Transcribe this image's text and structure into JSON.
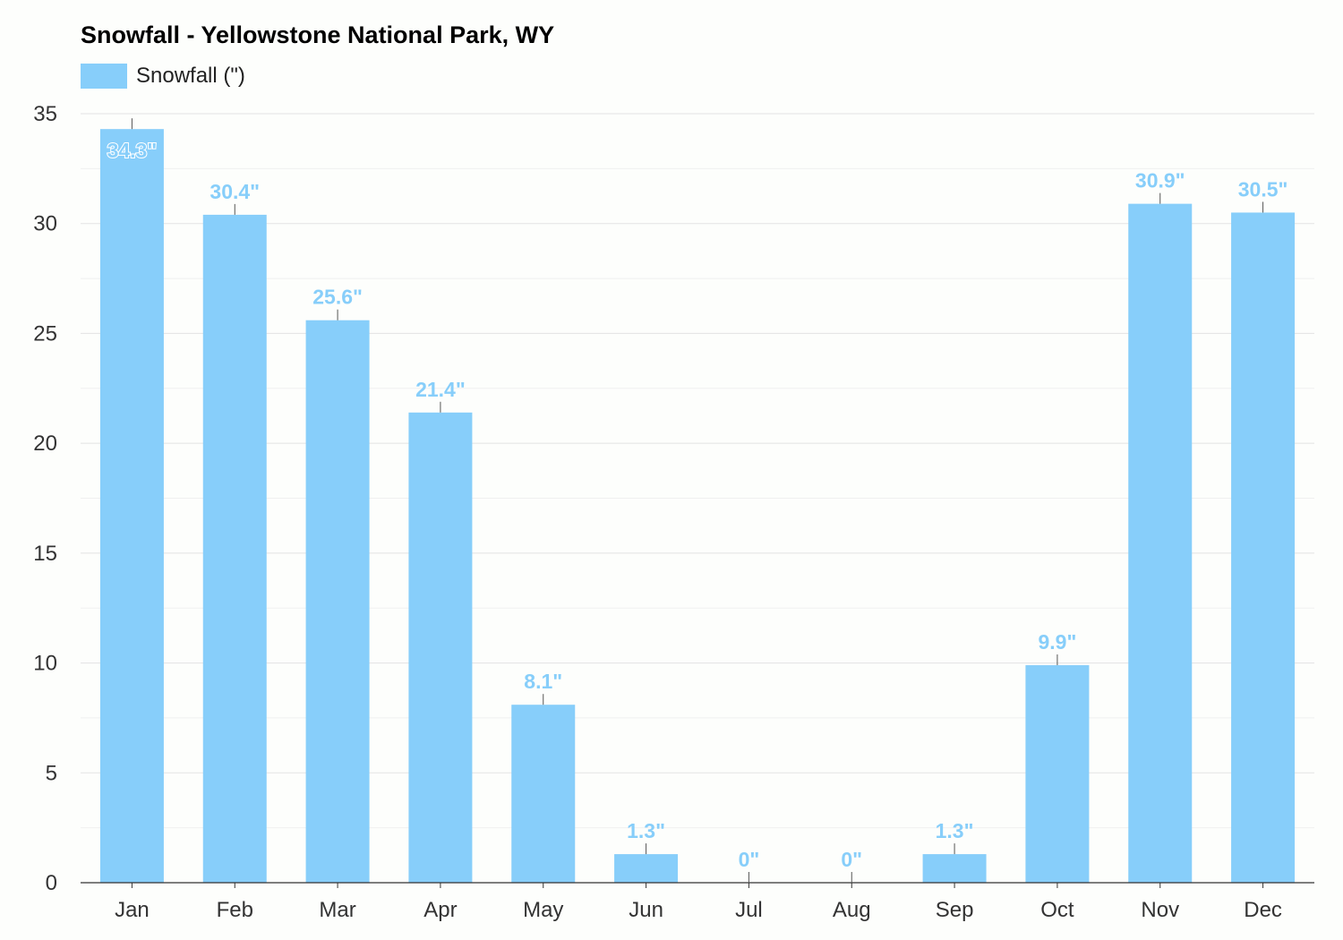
{
  "chart_data": {
    "type": "bar",
    "title": "Snowfall - Yellowstone National Park, WY",
    "xlabel": "",
    "ylabel": "",
    "categories": [
      "Jan",
      "Feb",
      "Mar",
      "Apr",
      "May",
      "Jun",
      "Jul",
      "Aug",
      "Sep",
      "Oct",
      "Nov",
      "Dec"
    ],
    "series": [
      {
        "name": "Snowfall (\")",
        "values": [
          34.3,
          30.4,
          25.6,
          21.4,
          8.1,
          1.3,
          0,
          0,
          1.3,
          9.9,
          30.9,
          30.5
        ],
        "labels": [
          "34.3\"",
          "30.4\"",
          "25.6\"",
          "21.4\"",
          "8.1\"",
          "1.3\"",
          "0\"",
          "0\"",
          "1.3\"",
          "9.9\"",
          "30.9\"",
          "30.5\""
        ]
      }
    ],
    "ylim": [
      0,
      35
    ],
    "yticks": [
      0,
      5,
      10,
      15,
      20,
      25,
      30,
      35
    ],
    "ytick_labels": [
      "0",
      "5",
      "10",
      "15",
      "20",
      "25",
      "30",
      "35"
    ],
    "grid": true,
    "legend_position": "top-left",
    "colors": {
      "bar": "#87cefa",
      "label": "#87cefa",
      "grid": "#e3e3e3",
      "axis": "#333333"
    }
  }
}
